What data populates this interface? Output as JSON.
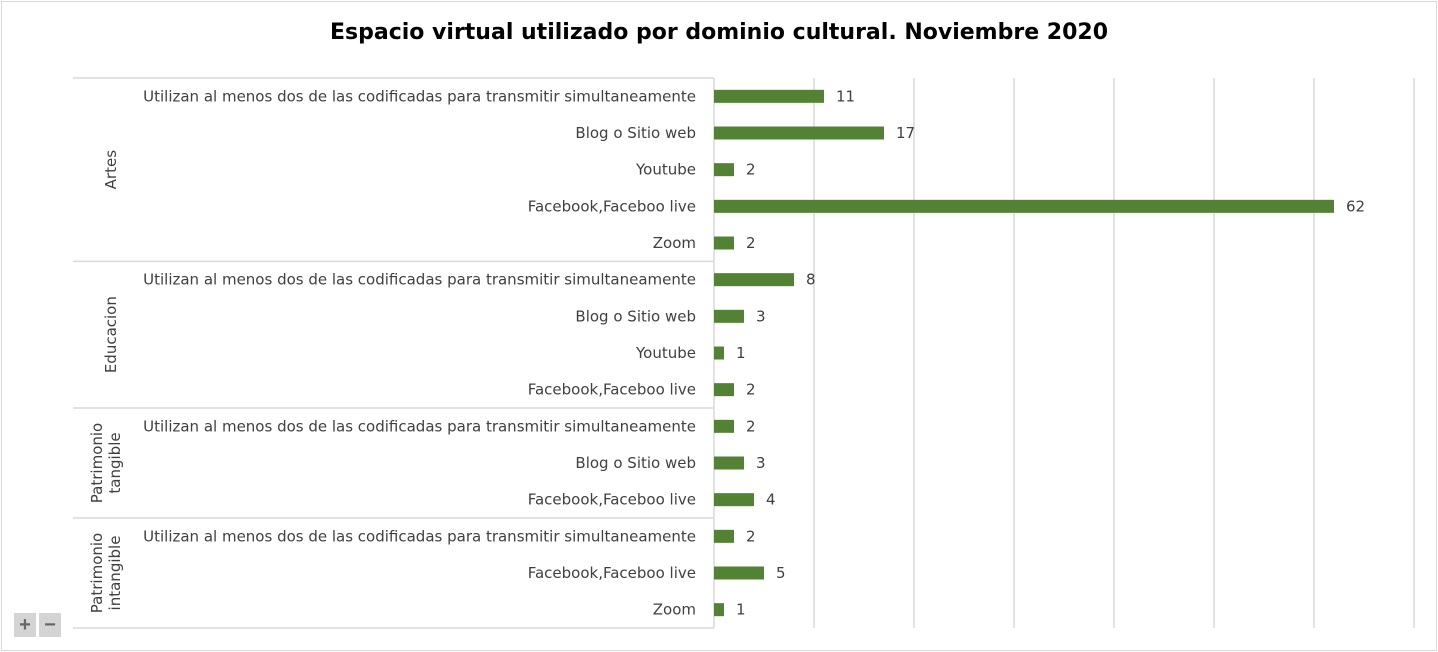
{
  "chart_data": {
    "type": "bar",
    "orientation": "horizontal",
    "title": "Espacio virtual utilizado por dominio cultural. Noviembre 2020",
    "xlim": [
      0,
      70
    ],
    "grid": true,
    "gridStep": 10,
    "series_color": "#548235",
    "groups": [
      {
        "name": "Artes",
        "items": [
          {
            "label": "Utilizan al menos dos de las codificadas para transmitir simultaneamente",
            "value": 11
          },
          {
            "label": "Blog o Sitio web",
            "value": 17
          },
          {
            "label": "Youtube",
            "value": 2
          },
          {
            "label": "Facebook,Faceboo live",
            "value": 62
          },
          {
            "label": "Zoom",
            "value": 2
          }
        ]
      },
      {
        "name": "Educacion",
        "items": [
          {
            "label": "Utilizan al menos dos de las codificadas para transmitir simultaneamente",
            "value": 8
          },
          {
            "label": "Blog o Sitio web",
            "value": 3
          },
          {
            "label": "Youtube",
            "value": 1
          },
          {
            "label": "Facebook,Faceboo live",
            "value": 2
          }
        ]
      },
      {
        "name": "Patrimonio tangible",
        "items": [
          {
            "label": "Utilizan al menos dos de las codificadas para transmitir simultaneamente",
            "value": 2
          },
          {
            "label": "Blog o Sitio web",
            "value": 3
          },
          {
            "label": "Facebook,Faceboo live",
            "value": 4
          }
        ]
      },
      {
        "name": "Patrimonio intangible",
        "items": [
          {
            "label": "Utilizan al menos dos de las codificadas para transmitir simultaneamente",
            "value": 2
          },
          {
            "label": "Facebook,Faceboo live",
            "value": 5
          },
          {
            "label": "Zoom",
            "value": 1
          }
        ]
      }
    ]
  },
  "controls": {
    "zoom_in": "+",
    "zoom_out": "−"
  }
}
